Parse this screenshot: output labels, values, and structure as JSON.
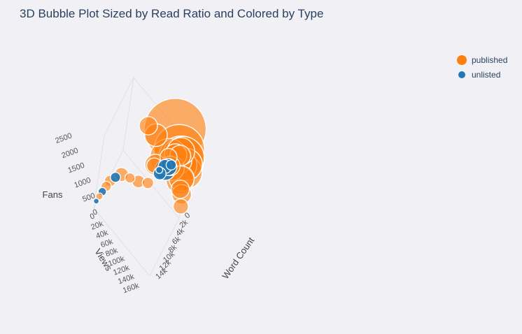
{
  "title": "3D Bubble Plot Sized by Read Ratio and Colored by Type",
  "legend": {
    "items": [
      {
        "label": "published",
        "color": "#ff7f0e"
      },
      {
        "label": "unlisted",
        "color": "#1f77b4"
      }
    ]
  },
  "chart_data": {
    "type": "scatter",
    "subtype": "3d-bubble",
    "title": "3D Bubble Plot Sized by Read Ratio and Colored by Type",
    "size_by": "Read Ratio",
    "color_by": "Type",
    "legend_position": "right",
    "grid": true,
    "axes": {
      "x": {
        "label": "Views",
        "ticks": [
          "0",
          "20k",
          "40k",
          "60k",
          "80k",
          "100k",
          "120k",
          "140k",
          "160k"
        ],
        "range": [
          0,
          160000
        ]
      },
      "y": {
        "label": "Word Count",
        "ticks": [
          "0",
          "2k",
          "4k",
          "6k",
          "8k",
          "10k",
          "12k",
          "14k"
        ],
        "range": [
          0,
          14000
        ]
      },
      "z": {
        "label": "Fans",
        "ticks": [
          "0",
          "500",
          "1000",
          "1500",
          "2000",
          "2500"
        ],
        "range": [
          0,
          2500
        ]
      }
    },
    "series": [
      {
        "name": "published",
        "color": "#ff7f0e",
        "points": [
          {
            "views": 120000,
            "word_count": 200,
            "fans": 2500,
            "read_ratio": 0.98
          },
          {
            "views": 140000,
            "word_count": 1000,
            "fans": 2200,
            "read_ratio": 0.8
          },
          {
            "views": 150000,
            "word_count": 1500,
            "fans": 2100,
            "read_ratio": 0.73
          },
          {
            "views": 150000,
            "word_count": 500,
            "fans": 2000,
            "read_ratio": 0.67
          },
          {
            "views": 125000,
            "word_count": 3000,
            "fans": 2000,
            "read_ratio": 0.6
          },
          {
            "views": 160000,
            "word_count": 200,
            "fans": 1600,
            "read_ratio": 0.53
          },
          {
            "views": 160000,
            "word_count": 4000,
            "fans": 2400,
            "read_ratio": 0.51
          },
          {
            "views": 160000,
            "word_count": 400,
            "fans": 1900,
            "read_ratio": 0.51
          },
          {
            "views": 140000,
            "word_count": 800,
            "fans": 1800,
            "read_ratio": 0.44
          },
          {
            "views": 150000,
            "word_count": 300,
            "fans": 1200,
            "read_ratio": 0.44
          },
          {
            "views": 150000,
            "word_count": 2500,
            "fans": 2500,
            "read_ratio": 0.44
          },
          {
            "views": 130000,
            "word_count": 1500,
            "fans": 1500,
            "read_ratio": 0.4
          },
          {
            "views": 155000,
            "word_count": 800,
            "fans": 1400,
            "read_ratio": 0.4
          },
          {
            "views": 140000,
            "word_count": 3000,
            "fans": 2300,
            "read_ratio": 0.36
          },
          {
            "views": 80000,
            "word_count": 1500,
            "fans": 1900,
            "read_ratio": 0.36
          },
          {
            "views": 145000,
            "word_count": 1200,
            "fans": 2100,
            "read_ratio": 0.33
          },
          {
            "views": 100000,
            "word_count": 4500,
            "fans": 1600,
            "read_ratio": 0.33
          },
          {
            "views": 135000,
            "word_count": 4000,
            "fans": 2000,
            "read_ratio": 0.31
          },
          {
            "views": 160000,
            "word_count": 600,
            "fans": 900,
            "read_ratio": 0.31
          },
          {
            "views": 155000,
            "word_count": 600,
            "fans": 1000,
            "read_ratio": 0.29
          },
          {
            "views": 60000,
            "word_count": 2000,
            "fans": 2000,
            "read_ratio": 0.29
          },
          {
            "views": 120000,
            "word_count": 2000,
            "fans": 1800,
            "read_ratio": 0.27
          },
          {
            "views": 160000,
            "word_count": 0,
            "fans": 400,
            "read_ratio": 0.24
          },
          {
            "views": 95000,
            "word_count": 3800,
            "fans": 1400,
            "read_ratio": 0.24
          },
          {
            "views": 30000,
            "word_count": 7000,
            "fans": 600,
            "read_ratio": 0.22
          },
          {
            "views": 70000,
            "word_count": 6000,
            "fans": 800,
            "read_ratio": 0.2
          },
          {
            "views": 90000,
            "word_count": 5000,
            "fans": 900,
            "read_ratio": 0.18
          },
          {
            "views": 12000,
            "word_count": 9000,
            "fans": 400,
            "read_ratio": 0.18
          },
          {
            "views": 8000,
            "word_count": 10000,
            "fans": 300,
            "read_ratio": 0.16
          },
          {
            "views": 50000,
            "word_count": 6500,
            "fans": 700,
            "read_ratio": 0.16
          },
          {
            "views": 2000,
            "word_count": 12000,
            "fans": 150,
            "read_ratio": 0.11
          }
        ]
      },
      {
        "name": "unlisted",
        "color": "#1f77b4",
        "points": [
          {
            "views": 120000,
            "word_count": 3000,
            "fans": 1500,
            "read_ratio": 0.33
          },
          {
            "views": 125000,
            "word_count": 2500,
            "fans": 1600,
            "read_ratio": 0.27
          },
          {
            "views": 115000,
            "word_count": 2000,
            "fans": 1400,
            "read_ratio": 0.22
          },
          {
            "views": 110000,
            "word_count": 3500,
            "fans": 1300,
            "read_ratio": 0.2
          },
          {
            "views": 130000,
            "word_count": 2200,
            "fans": 1700,
            "read_ratio": 0.16
          },
          {
            "views": 20000,
            "word_count": 8000,
            "fans": 500,
            "read_ratio": 0.16
          },
          {
            "views": 4000,
            "word_count": 11000,
            "fans": 200,
            "read_ratio": 0.13
          },
          {
            "views": 105000,
            "word_count": 2800,
            "fans": 1250,
            "read_ratio": 0.11
          },
          {
            "views": 0,
            "word_count": 13000,
            "fans": 100,
            "read_ratio": 0.09
          }
        ]
      }
    ]
  }
}
